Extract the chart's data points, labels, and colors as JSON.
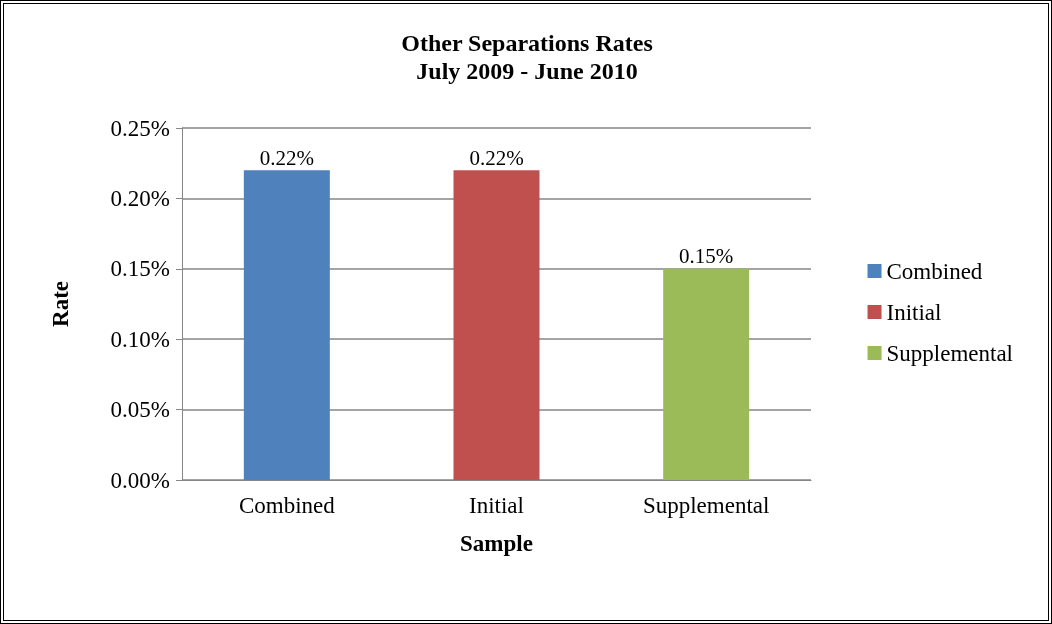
{
  "chart_data": {
    "type": "bar",
    "title": "Other Separations Rates",
    "subtitle": "July 2009 - June 2010",
    "xlabel": "Sample",
    "ylabel": "Rate",
    "categories": [
      "Combined",
      "Initial",
      "Supplemental"
    ],
    "series": [
      {
        "name": "Combined",
        "color": "#4f81bd",
        "values": [
          0.22,
          null,
          null
        ],
        "value_labels": [
          "0.22%",
          null,
          null
        ]
      },
      {
        "name": "Initial",
        "color": "#c0504d",
        "values": [
          null,
          0.22,
          null
        ],
        "value_labels": [
          null,
          "0.22%",
          null
        ]
      },
      {
        "name": "Supplemental",
        "color": "#9bbb59",
        "values": [
          null,
          null,
          0.15
        ],
        "value_labels": [
          null,
          null,
          "0.15%"
        ]
      }
    ],
    "ylim": [
      0,
      0.25
    ],
    "yticks": [
      {
        "value": 0,
        "label": "0.00%"
      },
      {
        "value": 0.05,
        "label": "0.05%"
      },
      {
        "value": 0.1,
        "label": "0.10%"
      },
      {
        "value": 0.15,
        "label": "0.15%"
      },
      {
        "value": 0.2,
        "label": "0.20%"
      },
      {
        "value": 0.25,
        "label": "0.25%"
      }
    ],
    "grid": "y",
    "legend": "right"
  }
}
